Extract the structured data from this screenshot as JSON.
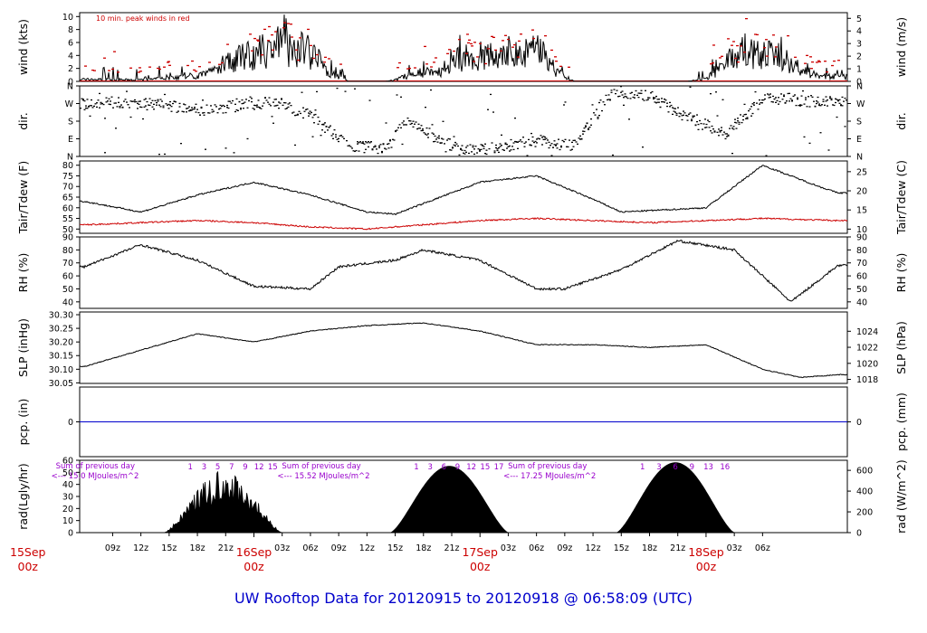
{
  "title": "UW Rooftop Data for 20120915  to  20120918 @ 06:58:09  (UTC)",
  "colors": {
    "title": "#0000cc",
    "date": "#cc0000",
    "annot": "#cc0000",
    "solar": "#9900cc",
    "pcp": "#0000cc",
    "tdew": "#cc0000",
    "data": "#000000"
  },
  "time_axis": {
    "hour_labels": [
      "09z",
      "12z",
      "15z",
      "18z",
      "21z",
      "03z",
      "06z",
      "09z",
      "12z",
      "15z",
      "18z",
      "21z",
      "03z",
      "06z",
      "09z",
      "12z",
      "15z",
      "18z",
      "21z",
      "03z",
      "06z"
    ],
    "day_labels": [
      {
        "day": "15Sep",
        "hour": "00z"
      },
      {
        "day": "16Sep",
        "hour": "00z"
      },
      {
        "day": "17Sep",
        "hour": "00z"
      },
      {
        "day": "18Sep",
        "hour": "00z"
      }
    ]
  },
  "chart_data": [
    {
      "type": "line",
      "panel": "wind",
      "ylabel_left": "wind (kts)",
      "ylabel_right": "wind (m/s)",
      "left_ticks": [
        "0",
        "2",
        "4",
        "6",
        "8",
        "10"
      ],
      "right_ticks": [
        "0",
        "1",
        "2",
        "3",
        "4",
        "5"
      ],
      "annotation": "10 min. peak winds in red",
      "series": [
        {
          "x_hours": [
            4,
            12,
            16,
            19,
            22,
            24,
            27,
            30,
            32,
            34,
            35,
            38,
            39,
            40,
            44,
            46,
            48,
            49,
            52,
            54,
            56,
            58,
            60,
            62,
            63,
            66,
            70,
            72,
            76,
            78,
            80,
            82,
            84
          ],
          "values": [
            0.5,
            0.3,
            0.8,
            1.5,
            4.5,
            5.5,
            7.5,
            6,
            2,
            0,
            0,
            0,
            0.3,
            1,
            2,
            5,
            4,
            5,
            5.5,
            7,
            2,
            0,
            0,
            0,
            0,
            0,
            0,
            0.5,
            6.5,
            5.5,
            5,
            2.5,
            1
          ]
        }
      ]
    },
    {
      "type": "scatter",
      "panel": "dir",
      "ylabel_left": "dir.",
      "ylabel_right": "dir.",
      "left_ticks": [
        "N",
        "W",
        "S",
        "E",
        "N"
      ],
      "right_ticks": [
        "N",
        "W",
        "S",
        "E",
        "N"
      ],
      "series": [
        {
          "x_hours": [
            6,
            10,
            14,
            18,
            22,
            26,
            30,
            34,
            38,
            40,
            46,
            50,
            54,
            58,
            62,
            66,
            70,
            74,
            78,
            80,
            84
          ],
          "values_deg": [
            270,
            280,
            265,
            240,
            260,
            285,
            210,
            60,
            40,
            180,
            30,
            50,
            85,
            55,
            340,
            310,
            200,
            120,
            290,
            300,
            280
          ]
        }
      ]
    },
    {
      "type": "line",
      "panel": "temp",
      "ylabel_left": "Tair/Tdew (F)",
      "ylabel_right": "Tair/Tdew (C)",
      "left_ticks": [
        "50",
        "55",
        "60",
        "65",
        "70",
        "75",
        "80"
      ],
      "right_ticks": [
        "10",
        "15",
        "20",
        "25"
      ],
      "series": [
        {
          "x_hours": [
            6,
            12,
            18,
            24,
            30,
            36,
            39,
            48,
            54,
            60,
            63,
            72,
            78,
            84,
            86
          ],
          "values": [
            63,
            58,
            66,
            72,
            66,
            58,
            57,
            72,
            75,
            64,
            58,
            60,
            80,
            70,
            67
          ]
        },
        {
          "x_hours": [
            6,
            18,
            24,
            30,
            36,
            42,
            48,
            54,
            60,
            66,
            72,
            78,
            86
          ],
          "values": [
            52,
            54,
            53,
            51,
            50,
            52,
            54,
            55,
            54,
            53,
            54,
            55,
            54
          ]
        }
      ]
    },
    {
      "type": "line",
      "panel": "rh",
      "ylabel_left": "RH (%)",
      "ylabel_right": "RH (%)",
      "left_ticks": [
        "40",
        "50",
        "60",
        "70",
        "80",
        "90"
      ],
      "right_ticks": [
        "40",
        "50",
        "60",
        "70",
        "80",
        "90"
      ],
      "series": [
        {
          "x_hours": [
            6,
            12,
            18,
            24,
            30,
            33,
            39,
            42,
            48,
            54,
            57,
            63,
            69,
            75,
            81,
            86
          ],
          "values": [
            67,
            84,
            72,
            52,
            50,
            67,
            72,
            80,
            72,
            50,
            50,
            65,
            87,
            80,
            40,
            68
          ]
        }
      ]
    },
    {
      "type": "line",
      "panel": "slp",
      "ylabel_left": "SLP (inHg)",
      "ylabel_right": "SLP (hPa)",
      "left_ticks": [
        "30.05",
        "30.10",
        "30.15",
        "30.20",
        "30.25",
        "30.30"
      ],
      "right_ticks": [
        "1018",
        "1020",
        "1022",
        "1024"
      ],
      "series": [
        {
          "x_hours": [
            6,
            12,
            18,
            24,
            30,
            36,
            42,
            48,
            54,
            60,
            66,
            72,
            78,
            82,
            86
          ],
          "values": [
            30.11,
            30.17,
            30.23,
            30.2,
            30.24,
            30.26,
            30.27,
            30.24,
            30.19,
            30.19,
            30.18,
            30.19,
            30.1,
            30.07,
            30.08
          ]
        }
      ]
    },
    {
      "type": "line",
      "panel": "pcp",
      "ylabel_left": "pcp. (in)",
      "ylabel_right": "pcp. (mm)",
      "left_ticks": [
        "0"
      ],
      "right_ticks": [
        "0"
      ],
      "series": [
        {
          "x_hours": [
            6,
            86
          ],
          "values": [
            0,
            0
          ]
        }
      ]
    },
    {
      "type": "area",
      "panel": "rad",
      "ylabel_left": "rad(Lgly/hr)",
      "ylabel_right": "rad (W/m^2)",
      "left_ticks": [
        "0",
        "10",
        "20",
        "30",
        "40",
        "50",
        "60"
      ],
      "right_ticks": [
        "0",
        "200",
        "400",
        "600"
      ],
      "days": [
        {
          "start_h": 14.5,
          "end_h": 27,
          "peak_ly": 50,
          "cloudy": true,
          "sum_label": "Sum of previous day",
          "sum_value": "<--- 15.0 MJoules/m^2",
          "local_hours": [
            "1",
            "3",
            "5",
            "7",
            "9",
            "12",
            "15"
          ]
        },
        {
          "start_h": 38.5,
          "end_h": 51,
          "peak_ly": 55,
          "cloudy": false,
          "sum_label": "Sum of previous day",
          "sum_value": "<--- 15.52 MJoules/m^2",
          "local_hours": [
            "1",
            "3",
            "6",
            "9",
            "12",
            "15",
            "17"
          ]
        },
        {
          "start_h": 62.5,
          "end_h": 75,
          "peak_ly": 58,
          "cloudy": false,
          "sum_label": "Sum of previous day",
          "sum_value": "<--- 17.25 MJoules/m^2",
          "local_hours": [
            "1",
            "3",
            "6",
            "9",
            "13",
            "16"
          ]
        }
      ]
    }
  ]
}
